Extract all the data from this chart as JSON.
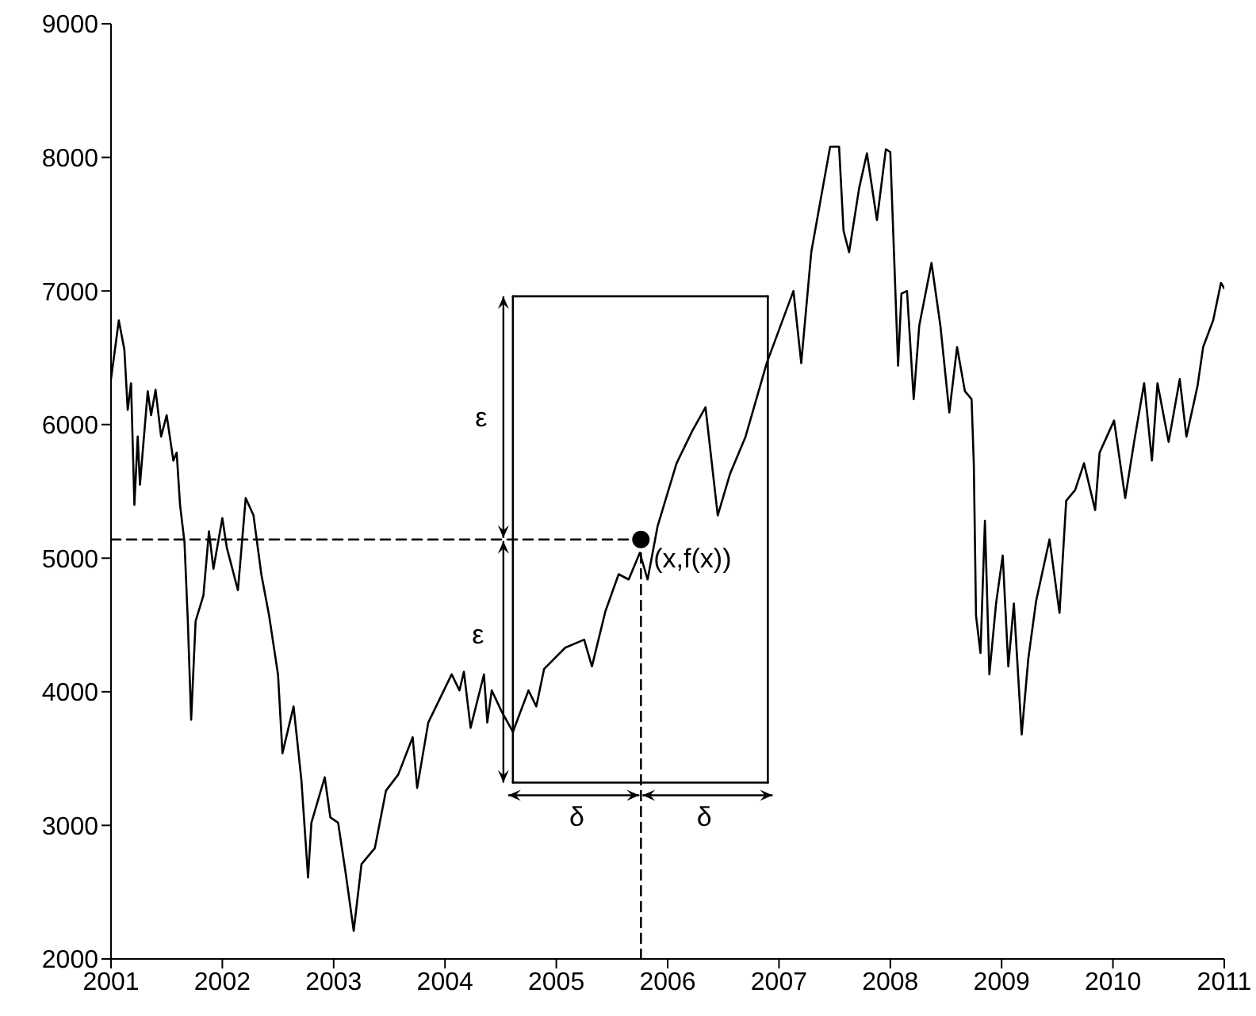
{
  "chart_data": {
    "type": "line",
    "xlim": [
      2001,
      2011
    ],
    "ylim": [
      2000,
      9000
    ],
    "xticks": [
      2001,
      2002,
      2003,
      2004,
      2005,
      2006,
      2007,
      2008,
      2009,
      2010,
      2011
    ],
    "yticks": [
      2000,
      3000,
      4000,
      5000,
      6000,
      7000,
      8000,
      9000
    ],
    "marker": "none",
    "line_style": "solid",
    "series": [
      {
        "color": "#000000",
        "x": [
          2001.0,
          2001.07,
          2001.12,
          2001.15,
          2001.18,
          2001.21,
          2001.24,
          2001.26,
          2001.33,
          2001.36,
          2001.4,
          2001.45,
          2001.5,
          2001.56,
          2001.59,
          2001.62,
          2001.66,
          2001.69,
          2001.72,
          2001.76,
          2001.83,
          2001.88,
          2001.92,
          2002.0,
          2002.04,
          2002.14,
          2002.21,
          2002.28,
          2002.35,
          2002.42,
          2002.5,
          2002.54,
          2002.64,
          2002.71,
          2002.77,
          2002.8,
          2002.92,
          2002.97,
          2003.04,
          2003.11,
          2003.18,
          2003.25,
          2003.37,
          2003.47,
          2003.58,
          2003.71,
          2003.75,
          2003.85,
          2003.99,
          2004.06,
          2004.13,
          2004.17,
          2004.23,
          2004.35,
          2004.38,
          2004.42,
          2004.51,
          2004.61,
          2004.75,
          2004.82,
          2004.89,
          2005.08,
          2005.25,
          2005.32,
          2005.44,
          2005.56,
          2005.65,
          2005.75,
          2005.82,
          2005.91,
          2006.08,
          2006.22,
          2006.34,
          2006.45,
          2006.56,
          2006.7,
          2006.89,
          2007.13,
          2007.2,
          2007.29,
          2007.41,
          2007.46,
          2007.54,
          2007.58,
          2007.63,
          2007.72,
          2007.79,
          2007.88,
          2007.96,
          2008.0,
          2008.07,
          2008.1,
          2008.15,
          2008.21,
          2008.26,
          2008.37,
          2008.45,
          2008.53,
          2008.6,
          2008.67,
          2008.73,
          2008.75,
          2008.77,
          2008.81,
          2008.85,
          2008.89,
          2008.95,
          2009.01,
          2009.06,
          2009.11,
          2009.18,
          2009.24,
          2009.31,
          2009.43,
          2009.52,
          2009.58,
          2009.66,
          2009.74,
          2009.84,
          2009.88,
          2010.01,
          2010.11,
          2010.19,
          2010.28,
          2010.35,
          2010.4,
          2010.5,
          2010.6,
          2010.66,
          2010.76,
          2010.81,
          2010.9,
          2010.97,
          2011.0
        ],
        "values": [
          6340,
          6780,
          6560,
          6110,
          6310,
          5400,
          5910,
          5550,
          6250,
          6070,
          6260,
          5910,
          6070,
          5730,
          5790,
          5400,
          5120,
          4530,
          3790,
          4530,
          4720,
          5200,
          4920,
          5300,
          5080,
          4760,
          5450,
          5320,
          4880,
          4570,
          4130,
          3540,
          3890,
          3340,
          2610,
          3020,
          3360,
          3060,
          3020,
          2630,
          2210,
          2710,
          2830,
          3260,
          3380,
          3660,
          3280,
          3770,
          4010,
          4130,
          4010,
          4150,
          3730,
          4130,
          3770,
          4010,
          3850,
          3700,
          4010,
          3890,
          4170,
          4330,
          4390,
          4190,
          4600,
          4880,
          4840,
          5040,
          4840,
          5240,
          5710,
          5950,
          6130,
          5320,
          5630,
          5910,
          6460,
          7000,
          6460,
          7290,
          7850,
          8080,
          8080,
          7450,
          7290,
          7770,
          8030,
          7530,
          8060,
          8040,
          6440,
          6980,
          7000,
          6190,
          6740,
          7210,
          6740,
          6090,
          6580,
          6250,
          6190,
          5710,
          4570,
          4290,
          5280,
          4130,
          4660,
          5020,
          4190,
          4660,
          3680,
          4250,
          4680,
          5140,
          4590,
          5430,
          5510,
          5710,
          5360,
          5790,
          6030,
          5450,
          5870,
          6310,
          5730,
          6310,
          5870,
          6340,
          5910,
          6290,
          6580,
          6780,
          7060,
          7020
        ]
      },
      {
        "color": "#000000",
        "line_style": "dashed",
        "x": [
          2001,
          2005.76
        ],
        "values": [
          5140,
          5140
        ]
      },
      {
        "color": "#000000",
        "line_style": "dashed",
        "x": [
          2005.76,
          2005.76
        ],
        "values": [
          2000,
          5140
        ]
      },
      {
        "color": "#000000",
        "x": [
          2004.61,
          2004.61
        ],
        "values": [
          3320,
          6960
        ]
      },
      {
        "color": "#000000",
        "x": [
          2004.61,
          2006.9
        ],
        "values": [
          6960,
          6960
        ]
      },
      {
        "color": "#000000",
        "x": [
          2006.9,
          2006.9
        ],
        "values": [
          6960,
          3320
        ]
      },
      {
        "color": "#000000",
        "x": [
          2004.61,
          2006.9
        ],
        "values": [
          3320,
          3320
        ]
      },
      {
        "type": "scatter",
        "marker": "circle",
        "color": "#000000",
        "x": [
          2005.76
        ],
        "values": [
          5140
        ]
      }
    ],
    "annotations": [
      "ε",
      "ε",
      "δ",
      "δ",
      "(x,f(x))"
    ]
  }
}
